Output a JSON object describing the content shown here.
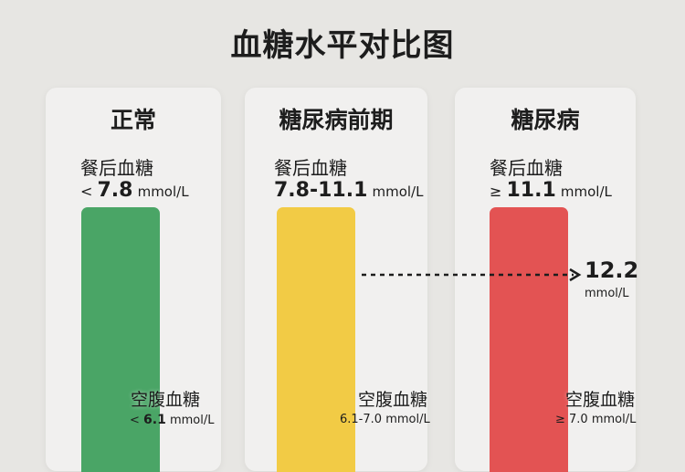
{
  "title": "血糖水平对比图",
  "chart_data": {
    "type": "bar",
    "categories": [
      "正常",
      "糖尿病前期",
      "糖尿病"
    ],
    "postprandial_label": "餐后血糖",
    "fasting_label": "空腹血糖",
    "unit": "mmol/L",
    "postprandial_ranges": [
      {
        "prefix": "< ",
        "value": "7.8"
      },
      {
        "prefix": "",
        "value": "7.8-11.1"
      },
      {
        "prefix": "≥ ",
        "value": "11.1"
      }
    ],
    "fasting_ranges": [
      {
        "prefix": "< ",
        "value": "6.1"
      },
      {
        "prefix": "",
        "value": "6.1-7.0"
      },
      {
        "prefix": "≥ ",
        "value": "7.0"
      }
    ],
    "colors": [
      "#4aa566",
      "#f2cb45",
      "#e35353"
    ],
    "highlight_value": "12.2",
    "highlight_unit": "mmol/L"
  }
}
